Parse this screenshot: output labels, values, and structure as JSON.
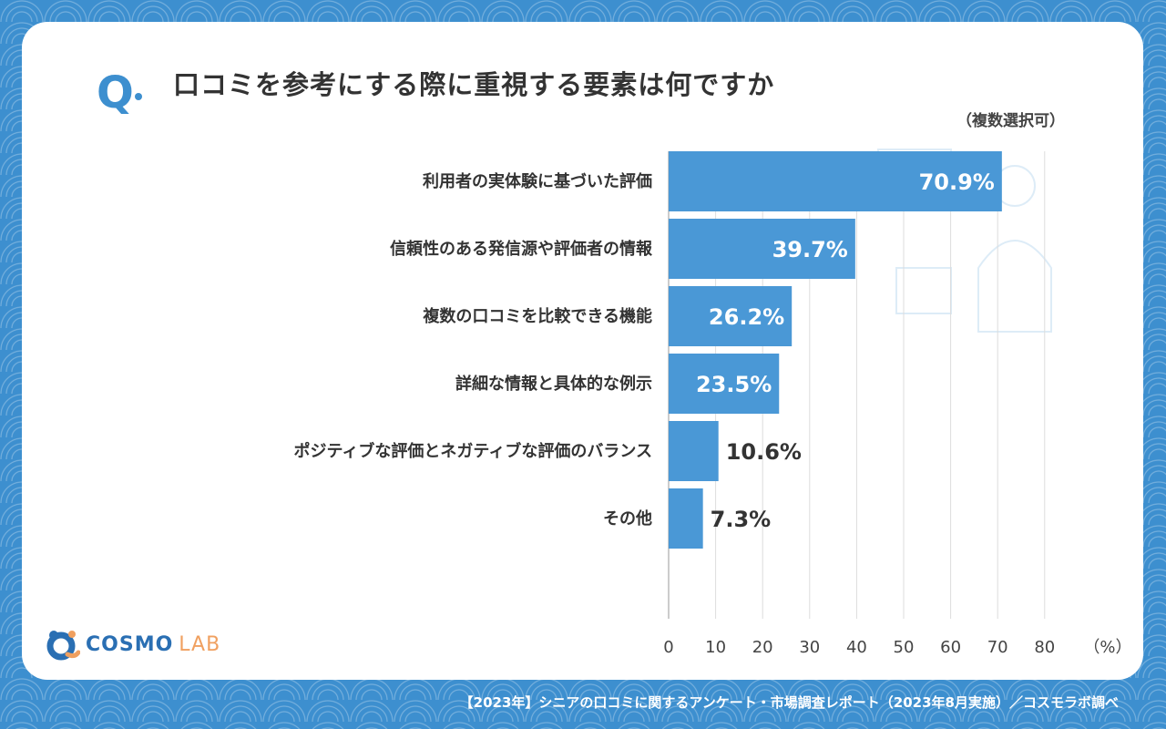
{
  "header": {
    "q_mark": "Q",
    "title": "口コミを参考にする際に重視する要素は何ですか",
    "note": "（複数選択可）"
  },
  "chart_data": {
    "type": "bar",
    "orientation": "horizontal",
    "categories": [
      "利用者の実体験に基づいた評価",
      "信頼性のある発信源や評価者の情報",
      "複数の口コミを比較できる機能",
      "詳細な情報と具体的な例示",
      "ポジティブな評価とネガティブな評価のバランス",
      "その他"
    ],
    "values": [
      70.9,
      39.7,
      26.2,
      23.5,
      10.6,
      7.3
    ],
    "value_labels": [
      "70.9%",
      "39.7%",
      "26.2%",
      "23.5%",
      "10.6%",
      "7.3%"
    ],
    "x_ticks": [
      "0",
      "10",
      "20",
      "30",
      "40",
      "50",
      "60",
      "70",
      "80"
    ],
    "x_unit": "（%）",
    "xlim": [
      0,
      80
    ],
    "bar_color": "#4a98d6",
    "grid": true
  },
  "logo": {
    "part_a": "COSMO",
    "part_b": "LAB",
    "colors": [
      "#2a6fb3",
      "#f0a060"
    ]
  },
  "footer": {
    "source": "【2023年】シニアの口コミに関するアンケート・市場調査レポート（2023年8月実施）／コスモラボ調べ"
  }
}
